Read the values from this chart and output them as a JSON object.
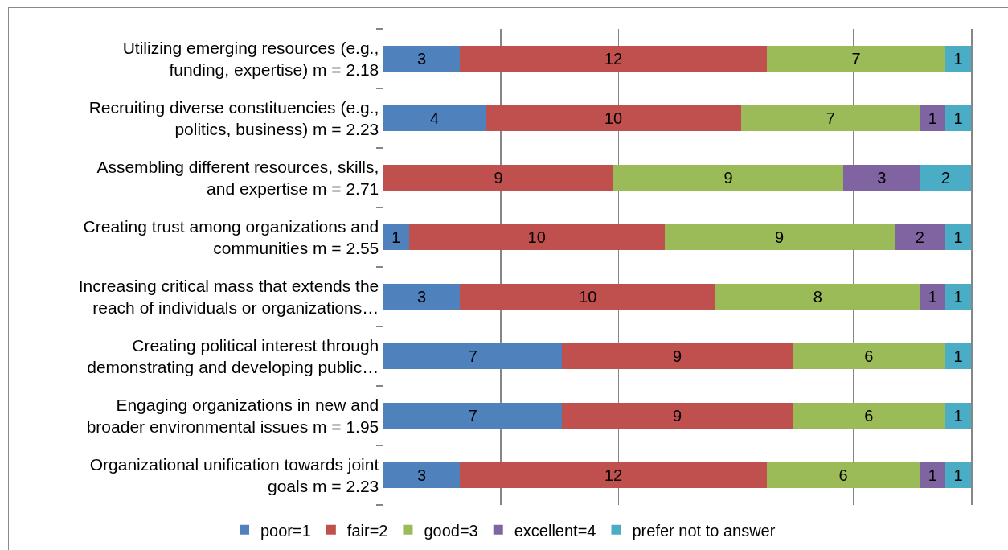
{
  "chart_data": {
    "type": "bar",
    "orientation": "horizontal",
    "stacked": true,
    "categories": [
      "Utilizing emerging resources (e.g., funding, expertise) m = 2.18",
      "Recruiting diverse constituencies (e.g., politics, business) m = 2.23",
      "Assembling different resources, skills, and expertise m = 2.71",
      "Creating trust among organizations and communities m = 2.55",
      "Increasing critical mass that extends the reach of individuals or organizations…",
      "Creating political interest through demonstrating and developing public…",
      "Engaging organizations in new and broader environmental issues m = 1.95",
      "Organizational unification towards joint goals m = 2.23"
    ],
    "series": [
      {
        "name": "poor=1",
        "color": "#4f81bd",
        "values": [
          3,
          4,
          null,
          1,
          3,
          7,
          7,
          3
        ]
      },
      {
        "name": "fair=2",
        "color": "#c0504d",
        "values": [
          12,
          10,
          9,
          10,
          10,
          9,
          9,
          12
        ]
      },
      {
        "name": "good=3",
        "color": "#9bbb59",
        "values": [
          7,
          7,
          9,
          9,
          8,
          6,
          6,
          6
        ]
      },
      {
        "name": "excellent=4",
        "color": "#8064a2",
        "values": [
          null,
          1,
          3,
          2,
          1,
          null,
          null,
          1
        ]
      },
      {
        "name": "prefer not to answer",
        "color": "#4bacc6",
        "values": [
          1,
          1,
          2,
          1,
          1,
          1,
          1,
          1
        ]
      }
    ],
    "xlim": [
      0,
      23
    ],
    "xticks": [
      {
        "value": 0,
        "label": null
      },
      {
        "value": 4.6,
        "label": null
      },
      {
        "value": 9.2,
        "label": null
      },
      {
        "value": 13.8,
        "label": null
      },
      {
        "value": 18.4,
        "label": null
      },
      {
        "value": 23,
        "label": null
      }
    ],
    "grid": "x",
    "data_labels": true,
    "legend": "bottom",
    "tick_labels": "y"
  }
}
